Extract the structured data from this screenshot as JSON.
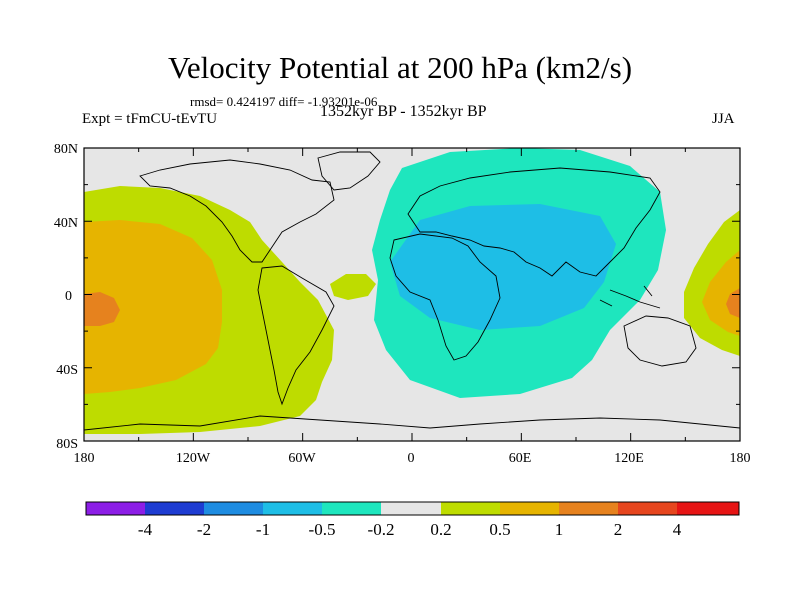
{
  "title": "Velocity Potential at 200 hPa (km2/s)",
  "stats": "rmsd= 0.424197 diff= -1.93201e-06",
  "expt": "Expt = tFmCU-tEvTU",
  "period": "1352kyr BP - 1352kyr BP",
  "season": "JJA",
  "axes": {
    "lat_labels": [
      "80N",
      "40N",
      "0",
      "40S",
      "80S"
    ],
    "lon_labels": [
      "180",
      "120W",
      "60W",
      "0",
      "60E",
      "120E",
      "180"
    ]
  },
  "colorbar": {
    "colors": [
      "#8c1ee6",
      "#1e3cd2",
      "#1e8ce1",
      "#1ebee6",
      "#1ee6be",
      "#e6e6e6",
      "#bedc00",
      "#e6b400",
      "#e6821e",
      "#e6461e",
      "#e61414"
    ],
    "labels": [
      "-4",
      "-2",
      "-1",
      "-0.5",
      "-0.2",
      "0.2",
      "0.5",
      "1",
      "2",
      "4"
    ]
  },
  "palette": {
    "neutral": "#e6e6e6",
    "lime": "#bedc00",
    "amber": "#e6b400",
    "orange": "#e6821e",
    "teal": "#1ee6be",
    "cyan": "#1ebee6"
  }
}
